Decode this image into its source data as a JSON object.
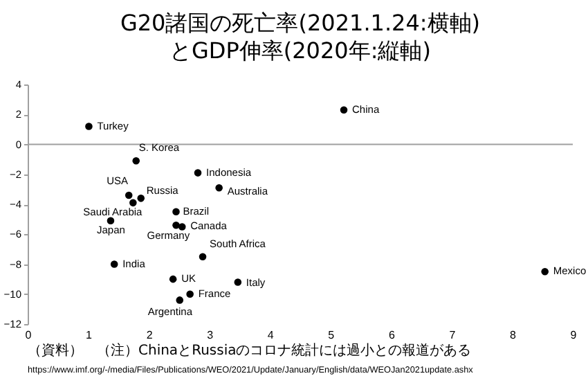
{
  "chart_data": {
    "type": "scatter",
    "title": "G20諸国の死亡率(2021.1.24:横軸)\nとGDP伸率(2020年:縦軸)",
    "series": [
      {
        "color": "#000000",
        "x": [
          1.01,
          5.22,
          1.79,
          2.81,
          3.16,
          1.67,
          1.87,
          1.74,
          2.45,
          1.37,
          2.45,
          2.55,
          2.89,
          1.43,
          2.4,
          3.47,
          2.68,
          2.51,
          8.54
        ],
        "values": [
          1.2,
          2.3,
          -1.1,
          -1.9,
          -2.9,
          -3.4,
          -3.6,
          -3.9,
          -4.5,
          -5.1,
          -5.4,
          -5.5,
          -7.5,
          -8.0,
          -9.0,
          -9.2,
          -10.0,
          -10.4,
          -8.5
        ]
      }
    ],
    "xlim": [
      0,
      9
    ],
    "xticks": [
      0,
      1,
      2,
      3,
      4,
      5,
      6,
      7,
      8,
      9
    ],
    "ylim": [
      -12,
      4
    ],
    "yticks": [
      -12,
      -10,
      -8,
      -6,
      -4,
      -2,
      0,
      2,
      4
    ],
    "ref_lines": [
      {
        "axis": "y",
        "value": 0,
        "color": "#a0a0a0"
      }
    ],
    "marker": "circle",
    "grid": false,
    "legend": false,
    "annotations": [
      {
        "text": "Turkey",
        "x": 1.01,
        "y": 1.2
      },
      {
        "text": "China",
        "x": 5.22,
        "y": 2.3
      },
      {
        "text": "S. Korea",
        "x": 1.79,
        "y": -1.1
      },
      {
        "text": "Indonesia",
        "x": 2.81,
        "y": -1.9
      },
      {
        "text": "Australia",
        "x": 3.16,
        "y": -2.9
      },
      {
        "text": "USA",
        "x": 1.67,
        "y": -3.4
      },
      {
        "text": "Russia",
        "x": 1.87,
        "y": -3.6
      },
      {
        "text": "Saudi Arabia",
        "x": 1.74,
        "y": -3.9
      },
      {
        "text": "Brazil",
        "x": 2.45,
        "y": -4.5
      },
      {
        "text": "Japan",
        "x": 1.37,
        "y": -5.1
      },
      {
        "text": "Germany",
        "x": 2.45,
        "y": -5.4
      },
      {
        "text": "Canada",
        "x": 2.55,
        "y": -5.5
      },
      {
        "text": "South Africa",
        "x": 2.89,
        "y": -7.5
      },
      {
        "text": "India",
        "x": 1.43,
        "y": -8.0
      },
      {
        "text": "UK",
        "x": 2.4,
        "y": -9.0
      },
      {
        "text": "Italy",
        "x": 3.47,
        "y": -9.2
      },
      {
        "text": "France",
        "x": 2.68,
        "y": -10.0
      },
      {
        "text": "Argentina",
        "x": 2.51,
        "y": -10.4
      },
      {
        "text": "Mexico",
        "x": 8.54,
        "y": -8.5
      },
      "（資料）",
      "（注）ChinaとRussiaのコロナ統計には過小との報道がある",
      "https://www.imf.org/-/media/Files/Publications/WEO/2021/Update/January/English/data/WEOJan2021update.ashx"
    ]
  }
}
